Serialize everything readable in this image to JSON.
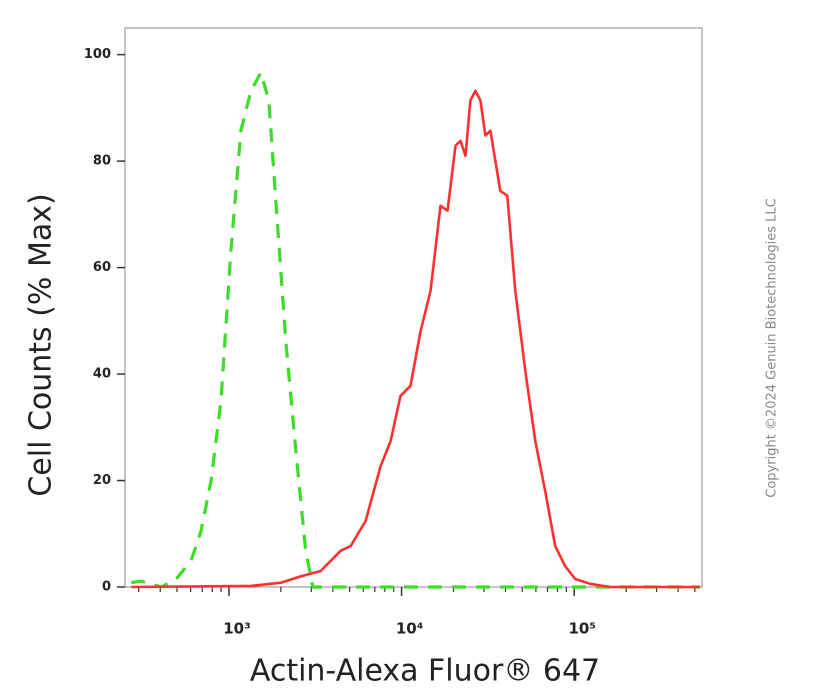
{
  "chart_data": {
    "type": "line",
    "x_label": "Actin-Alexa Fluor® 647",
    "y_label": "Cell Counts (% Max)",
    "annotation": "Copyright ©2024 Genuin Biotechnologies LLC",
    "x_scale": "log",
    "xlim": [
      250,
      550000
    ],
    "ylim": [
      0,
      105
    ],
    "xticks": [
      {
        "value": 1000,
        "label": "10³"
      },
      {
        "value": 10000,
        "label": "10⁴"
      },
      {
        "value": 100000,
        "label": "10⁵"
      }
    ],
    "xminorticks": [
      300,
      400,
      500,
      600,
      700,
      800,
      900,
      2000,
      3000,
      4000,
      5000,
      6000,
      7000,
      8000,
      9000,
      20000,
      30000,
      40000,
      50000,
      60000,
      70000,
      80000,
      90000,
      200000,
      300000,
      400000,
      500000
    ],
    "yticks": [
      0,
      20,
      40,
      60,
      80,
      100
    ],
    "series": [
      {
        "color": "#3ddc2a",
        "dashed": true,
        "x": [
          272,
          310,
          405,
          494,
          603,
          689,
          787,
          899,
          1027,
          1173,
          1340,
          1531,
          1703,
          1869,
          2135,
          2439,
          2785,
          3062,
          9860,
          37300,
          141000,
          535000
        ],
        "values": [
          0.8,
          1.1,
          0,
          1.5,
          4.9,
          10.5,
          19.9,
          35.0,
          63.2,
          85.7,
          93.2,
          96.6,
          91.4,
          72.6,
          46.2,
          25.6,
          6.8,
          0,
          0,
          0,
          0,
          0
        ]
      },
      {
        "color": "#ff3030",
        "dashed": false,
        "x": [
          272,
          1340,
          1999,
          2606,
          3401,
          4437,
          5072,
          6190,
          7563,
          8636,
          9860,
          11270,
          12880,
          14720,
          16800,
          18450,
          20520,
          21940,
          23450,
          25060,
          26780,
          28620,
          30590,
          32690,
          37340,
          41000,
          45600,
          52100,
          59500,
          67900,
          77600,
          88700,
          101300,
          123700,
          161300,
          535000
        ],
        "values": [
          0,
          0.2,
          0.8,
          2,
          3,
          6.8,
          7.7,
          12.4,
          22.7,
          27.4,
          35.9,
          37.8,
          48,
          55.6,
          71.6,
          70.7,
          82.9,
          83.8,
          81,
          91.4,
          93.2,
          91.4,
          84.8,
          85.7,
          74.4,
          73.5,
          55.6,
          40.6,
          27.4,
          18,
          7.7,
          3.9,
          1.5,
          0.6,
          0,
          0
        ]
      }
    ]
  }
}
